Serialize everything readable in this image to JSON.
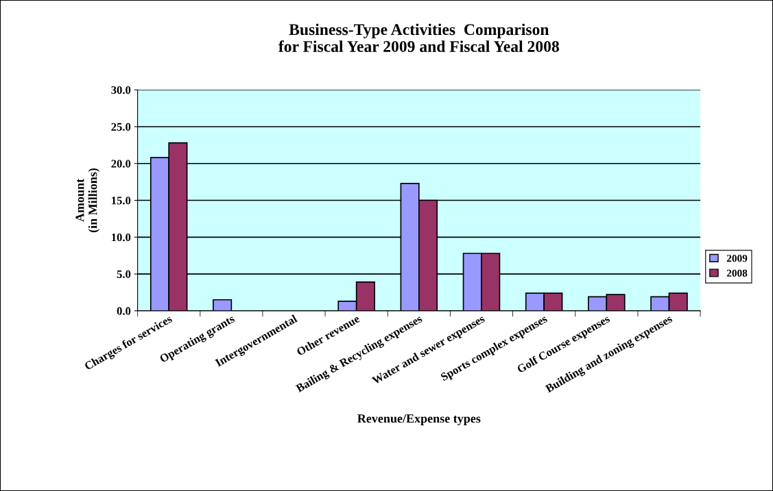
{
  "chart_data": {
    "type": "bar",
    "title": "Business-Type Activities  Comparison\nfor Fiscal Year 2009 and Fiscal Yeal 2008",
    "xlabel": "Revenue/Expense types",
    "ylabel": "Amount\n(in Millions)",
    "categories": [
      "Charges for services",
      "Operating grants",
      "Intergovernmental",
      "Other revenue",
      "Bailing & Recycling expenses",
      "Water and sewer expenses",
      "Sports complex expenses",
      "Golf Course expenses",
      "Building and zoning expenses"
    ],
    "series": [
      {
        "name": "2009",
        "color": "#9999ff",
        "values": [
          20.8,
          1.5,
          null,
          1.3,
          17.3,
          7.8,
          2.4,
          1.9,
          1.9
        ]
      },
      {
        "name": "2008",
        "color": "#993366",
        "values": [
          22.8,
          null,
          null,
          3.9,
          15.0,
          7.8,
          2.4,
          2.2,
          2.4
        ]
      }
    ],
    "ylim": [
      0,
      30
    ],
    "yticks": [
      {
        "value": 0,
        "label": "0.0"
      },
      {
        "value": 5,
        "label": "5.0"
      },
      {
        "value": 10,
        "label": "10.0"
      },
      {
        "value": 15,
        "label": "15.0"
      },
      {
        "value": 20,
        "label": "20.0"
      },
      {
        "value": 25,
        "label": "25.0"
      },
      {
        "value": 30,
        "label": "30.0"
      }
    ],
    "grid": "y",
    "legend": "right"
  }
}
